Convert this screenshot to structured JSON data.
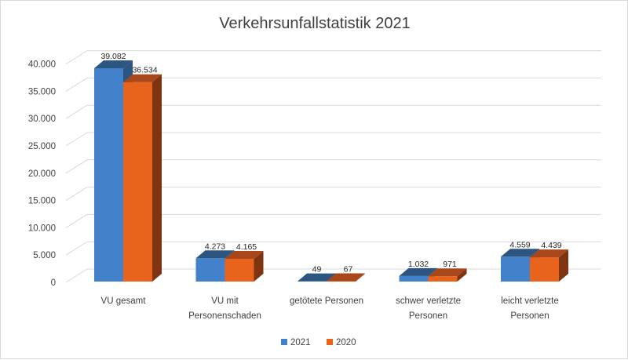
{
  "chart_data": {
    "type": "bar",
    "title": "Verkehrsunfallstatistik 2021",
    "xlabel": "",
    "ylabel": "",
    "ylim": [
      0,
      40000
    ],
    "yticks": [
      "0",
      "5.000",
      "10.000",
      "15.000",
      "20.000",
      "25.000",
      "30.000",
      "35.000",
      "40.000"
    ],
    "grid": true,
    "legend_position": "bottom",
    "categories": [
      [
        "VU gesamt"
      ],
      [
        "VU mit",
        "Personenschaden"
      ],
      [
        "getötete Personen"
      ],
      [
        "schwer verletzte",
        "Personen"
      ],
      [
        "leicht verletzte",
        "Personen"
      ]
    ],
    "series": [
      {
        "name": "2021",
        "color": "#4382CA",
        "top_color": "#2C5582",
        "side_color": "#2C5582",
        "values": [
          39082,
          4273,
          49,
          1032,
          4559
        ],
        "labels": [
          "39.082",
          "4.273",
          "49",
          "1.032",
          "4.559"
        ]
      },
      {
        "name": "2020",
        "color": "#E8641D",
        "top_color": "#A9461A",
        "side_color": "#7E3410",
        "values": [
          36534,
          4165,
          67,
          971,
          4439
        ],
        "labels": [
          "36.534",
          "4.165",
          "67",
          "971",
          "4.439"
        ]
      }
    ]
  }
}
